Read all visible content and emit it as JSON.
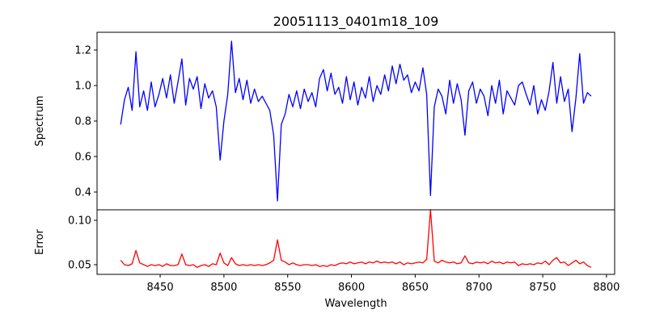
{
  "chart_data": {
    "type": "line",
    "title": "20051113_0401m18_109",
    "xlabel": "Wavelength",
    "xlim": [
      8400.5,
      8806.4
    ],
    "xticks": [
      8450,
      8500,
      8550,
      8600,
      8650,
      8700,
      8750,
      8800
    ],
    "xtick_labels": [
      "8450",
      "8500",
      "8550",
      "8600",
      "8650",
      "8700",
      "8750",
      "8800"
    ],
    "x": [
      8419,
      8422,
      8425,
      8428,
      8431,
      8434,
      8437,
      8440,
      8443,
      8446,
      8449,
      8452,
      8455,
      8458,
      8461,
      8464,
      8467,
      8470,
      8473,
      8476,
      8479,
      8482,
      8485,
      8488,
      8491,
      8494,
      8497,
      8500,
      8503,
      8506,
      8509,
      8512,
      8515,
      8518,
      8521,
      8524,
      8527,
      8530,
      8533,
      8536,
      8539,
      8542,
      8545,
      8548,
      8551,
      8554,
      8557,
      8560,
      8563,
      8566,
      8569,
      8572,
      8575,
      8578,
      8581,
      8584,
      8587,
      8590,
      8593,
      8596,
      8599,
      8602,
      8605,
      8608,
      8611,
      8614,
      8617,
      8620,
      8623,
      8626,
      8629,
      8632,
      8635,
      8638,
      8641,
      8644,
      8647,
      8650,
      8653,
      8656,
      8659,
      8662,
      8665,
      8668,
      8671,
      8674,
      8677,
      8680,
      8683,
      8686,
      8689,
      8692,
      8695,
      8698,
      8701,
      8704,
      8707,
      8710,
      8713,
      8716,
      8719,
      8722,
      8725,
      8728,
      8731,
      8734,
      8737,
      8740,
      8743,
      8746,
      8749,
      8752,
      8755,
      8758,
      8761,
      8764,
      8767,
      8770,
      8773,
      8776,
      8779,
      8782,
      8785,
      8788
    ],
    "panels": [
      {
        "name": "spectrum",
        "ylabel": "Spectrum",
        "color": "#0000ff",
        "ylim": [
          0.3,
          1.3
        ],
        "yticks": [
          0.4,
          0.6,
          0.8,
          1.0,
          1.2
        ],
        "ytick_labels": [
          "0.4",
          "0.6",
          "0.8",
          "1.0",
          "1.2"
        ],
        "values": [
          0.78,
          0.92,
          0.99,
          0.86,
          1.19,
          0.88,
          0.97,
          0.86,
          1.02,
          0.88,
          0.95,
          1.04,
          0.93,
          1.06,
          0.9,
          1.02,
          1.15,
          0.89,
          1.04,
          0.98,
          1.05,
          0.87,
          1.01,
          0.93,
          0.97,
          0.88,
          0.58,
          0.8,
          0.95,
          1.25,
          0.96,
          1.04,
          0.92,
          1.03,
          0.9,
          0.98,
          0.91,
          0.94,
          0.9,
          0.86,
          0.72,
          0.35,
          0.78,
          0.84,
          0.95,
          0.88,
          0.97,
          0.87,
          0.98,
          0.91,
          0.96,
          0.88,
          1.04,
          1.09,
          0.97,
          1.07,
          0.95,
          0.99,
          0.9,
          1.05,
          0.92,
          1.02,
          0.89,
          0.99,
          0.93,
          1.05,
          0.91,
          1.0,
          0.95,
          1.06,
          0.97,
          1.11,
          1.01,
          1.12,
          1.03,
          1.06,
          0.96,
          1.02,
          0.97,
          1.1,
          0.95,
          0.38,
          0.88,
          0.98,
          0.94,
          0.84,
          1.03,
          0.9,
          1.01,
          0.92,
          0.72,
          0.97,
          1.02,
          0.9,
          0.98,
          0.94,
          0.83,
          1.0,
          0.9,
          1.03,
          0.84,
          0.97,
          0.93,
          0.89,
          1.0,
          1.02,
          0.95,
          0.89,
          1.0,
          0.84,
          0.92,
          0.86,
          0.97,
          1.13,
          0.9,
          1.05,
          0.91,
          0.98,
          0.74,
          0.93,
          1.18,
          0.9,
          0.96,
          0.94
        ]
      },
      {
        "name": "error",
        "ylabel": "Error",
        "color": "#ff0000",
        "ylim": [
          0.0391,
          0.1118
        ],
        "yticks": [
          0.05,
          0.1
        ],
        "ytick_labels": [
          "0.05",
          "0.10"
        ],
        "values": [
          0.055,
          0.05,
          0.049,
          0.051,
          0.066,
          0.052,
          0.05,
          0.048,
          0.05,
          0.049,
          0.05,
          0.048,
          0.051,
          0.049,
          0.049,
          0.05,
          0.062,
          0.05,
          0.049,
          0.05,
          0.047,
          0.049,
          0.05,
          0.048,
          0.051,
          0.05,
          0.063,
          0.052,
          0.049,
          0.058,
          0.051,
          0.049,
          0.05,
          0.049,
          0.05,
          0.049,
          0.05,
          0.049,
          0.05,
          0.052,
          0.055,
          0.078,
          0.055,
          0.053,
          0.05,
          0.052,
          0.05,
          0.049,
          0.05,
          0.05,
          0.049,
          0.05,
          0.048,
          0.049,
          0.048,
          0.05,
          0.049,
          0.051,
          0.052,
          0.051,
          0.053,
          0.051,
          0.052,
          0.053,
          0.051,
          0.053,
          0.052,
          0.054,
          0.052,
          0.053,
          0.052,
          0.053,
          0.051,
          0.053,
          0.05,
          0.052,
          0.051,
          0.052,
          0.053,
          0.052,
          0.056,
          0.112,
          0.054,
          0.052,
          0.055,
          0.053,
          0.052,
          0.053,
          0.051,
          0.052,
          0.06,
          0.052,
          0.051,
          0.053,
          0.052,
          0.053,
          0.051,
          0.054,
          0.052,
          0.053,
          0.051,
          0.053,
          0.052,
          0.053,
          0.049,
          0.051,
          0.05,
          0.051,
          0.05,
          0.052,
          0.051,
          0.054,
          0.05,
          0.055,
          0.058,
          0.052,
          0.053,
          0.049,
          0.052,
          0.055,
          0.051,
          0.053,
          0.049,
          0.047
        ]
      }
    ]
  }
}
